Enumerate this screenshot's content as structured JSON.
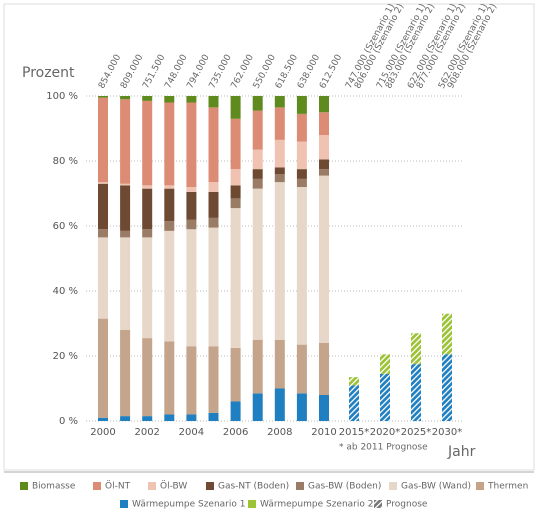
{
  "chart_data": {
    "type": "stacked_bar",
    "y_label": "Prozent",
    "x_label": "Jahr",
    "note": "* ab 2011 Prognose",
    "hatch_legend": "Prognose",
    "categories": [
      "2000",
      null,
      "2002",
      null,
      "2004",
      null,
      "2006",
      null,
      "2008",
      null,
      "2010",
      "2015*",
      "2020*",
      "2025*",
      "2030*"
    ],
    "hatched": [
      false,
      false,
      false,
      false,
      false,
      false,
      false,
      false,
      false,
      false,
      false,
      true,
      true,
      true,
      true
    ],
    "total_labels": [
      "854.000",
      "809.000",
      "751.500",
      "748.000",
      "794.000",
      "735.000",
      "762.000",
      "550.000",
      "618.500",
      "638.000",
      "612.500"
    ],
    "forecast_labels": [
      [
        "747.000 (Szenario 1)",
        "806.000 (Szenario 2)"
      ],
      [
        "715.000 (Szenario 1)",
        "883.000 (Szenario 2)"
      ],
      [
        "622.000 (Szenario 1)",
        "877.000 (Szenario 2)"
      ],
      [
        "562.000 (Szenario 1)",
        "908.000 (Szenario 2)"
      ]
    ],
    "ylim": [
      0,
      100
    ],
    "yticks": [
      {
        "value": 0,
        "label": "0 %"
      },
      {
        "value": 20,
        "label": "20 %"
      },
      {
        "value": 40,
        "label": "40 %"
      },
      {
        "value": 60,
        "label": "60 %"
      },
      {
        "value": 80,
        "label": "80 %"
      },
      {
        "value": 100,
        "label": "100 %"
      }
    ],
    "grid": true,
    "series": [
      {
        "name": "Wärmepumpe Szenario 1",
        "color": "#1f7fc0",
        "values": [
          1,
          1.5,
          1.5,
          2,
          2,
          2.5,
          6,
          8.5,
          10,
          8.5,
          8,
          11,
          14.5,
          17.5,
          20.5
        ]
      },
      {
        "name": "Wärmepumpe Szenario 2",
        "color": "#9cc236",
        "values": [
          null,
          null,
          null,
          null,
          null,
          null,
          null,
          null,
          null,
          null,
          null,
          2.5,
          6,
          9.5,
          12.5
        ]
      },
      {
        "name": "Thermen",
        "color": "#c4a48a",
        "values": [
          30.5,
          26.5,
          24,
          22.5,
          21,
          20.5,
          16.5,
          16.5,
          15,
          15,
          16,
          null,
          null,
          null,
          null
        ]
      },
      {
        "name": "Gas-BW (Wand)",
        "color": "#e6d7c8",
        "values": [
          25,
          28.5,
          31,
          34,
          36,
          36.5,
          43,
          46.5,
          48.5,
          48.5,
          51.5,
          null,
          null,
          null,
          null
        ]
      },
      {
        "name": "Gas-BW (Boden)",
        "color": "#9a7c66",
        "values": [
          2.5,
          2,
          2.5,
          3,
          3,
          3,
          3,
          3,
          2.5,
          2.5,
          2,
          null,
          null,
          null,
          null
        ]
      },
      {
        "name": "Gas-NT (Boden)",
        "color": "#6e4a33",
        "values": [
          14,
          14,
          12.5,
          10,
          8.5,
          8,
          4,
          3,
          2,
          3,
          3,
          null,
          null,
          null,
          null
        ]
      },
      {
        "name": "Öl-BW",
        "color": "#f0c2b2",
        "values": [
          0.5,
          0.5,
          1,
          1,
          1.5,
          3,
          5,
          6,
          8.5,
          8.5,
          7.5,
          null,
          null,
          null,
          null
        ]
      },
      {
        "name": "Öl-NT",
        "color": "#dc8c74",
        "values": [
          26,
          26,
          26,
          25.5,
          26,
          23,
          15.5,
          12,
          10,
          8.5,
          7,
          null,
          null,
          null,
          null
        ]
      },
      {
        "name": "Biomasse",
        "color": "#5f8a1e",
        "values": [
          0.5,
          1,
          1.5,
          2,
          2,
          3.5,
          7,
          4.5,
          3.5,
          5.5,
          5,
          null,
          null,
          null,
          null
        ]
      }
    ]
  }
}
